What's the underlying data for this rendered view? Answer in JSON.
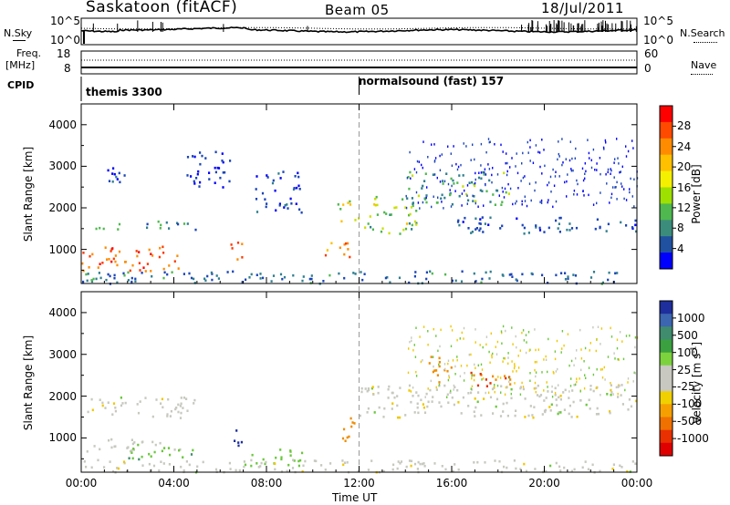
{
  "header": {
    "station": "Saskatoon (fitACF)",
    "beam": "Beam 05",
    "date": "18/Jul/2011"
  },
  "summary": {
    "nsky_label": "N.Sky",
    "nsearch_label": "N.Search",
    "freq_label_line1": "Freq.",
    "freq_label_line2": "[MHz]",
    "nave_label": "Nave",
    "cpid_label": "CPID",
    "left_ticks_top": [
      "10^5",
      "10^0"
    ],
    "right_ticks_top": [
      "10^5",
      "10^0"
    ],
    "left_ticks_freq": [
      "18",
      "8"
    ],
    "right_ticks_nave": [
      "60",
      "0"
    ],
    "cpid_segments": [
      {
        "label": "themis 3300",
        "start_hour": 0
      },
      {
        "label": "normalsound (fast) 157",
        "start_hour": 12
      }
    ]
  },
  "power_panel": {
    "ylabel": "Slant Range [km]",
    "yticks": [
      "4000",
      "3000",
      "2000",
      "1000"
    ],
    "colorbar_label": "Power [dB]",
    "colorbar_ticks": [
      "28",
      "24",
      "20",
      "16",
      "12",
      "8",
      "4"
    ],
    "colorbar_colors": [
      "#ff0000",
      "#ff4a00",
      "#ff8c00",
      "#ffc000",
      "#f5f000",
      "#9ee000",
      "#4fb84f",
      "#3c8c7c",
      "#2050a0",
      "#0000ff"
    ]
  },
  "velocity_panel": {
    "ylabel": "Slant Range [km]",
    "yticks": [
      "4000",
      "3000",
      "2000",
      "1000"
    ],
    "colorbar_label_main": "Velocity",
    "colorbar_label_units": "[m s",
    "colorbar_label_sup": "-1",
    "colorbar_label_end": "]",
    "colorbar_ticks": [
      "1000",
      "500",
      "100",
      "25",
      "-25",
      "-100",
      "-500",
      "-1000"
    ],
    "colorbar_colors": [
      "#1e2e9c",
      "#3c66b0",
      "#3f8c6e",
      "#3aa040",
      "#7cd23c",
      "#c8c8c0",
      "#c8c8c0",
      "#f0d000",
      "#f5a000",
      "#f07000",
      "#e83000",
      "#e00000"
    ]
  },
  "xaxis": {
    "label": "Time UT",
    "ticks": [
      "00:00",
      "04:00",
      "08:00",
      "12:00",
      "16:00",
      "20:00",
      "00:00"
    ]
  },
  "chart_data": [
    {
      "type": "heatmap",
      "title": "Beam 05",
      "xlabel": "Time UT",
      "ylabel": "Slant Range [km]",
      "xlim": [
        0,
        24
      ],
      "ylim": [
        180,
        4500
      ],
      "colorbar": {
        "label": "Power [dB]",
        "range": [
          0,
          30
        ]
      },
      "echo_regions": [
        {
          "t_start": 0.0,
          "t_end": 4.2,
          "range_min": 500,
          "range_max": 1100,
          "power_db": 27
        },
        {
          "t_start": 0.3,
          "t_end": 5.0,
          "range_min": 1500,
          "range_max": 1700,
          "power_db": 12
        },
        {
          "t_start": 1.0,
          "t_end": 2.5,
          "range_min": 2600,
          "range_max": 3000,
          "power_db": 6
        },
        {
          "t_start": 4.5,
          "t_end": 6.5,
          "range_min": 2500,
          "range_max": 3400,
          "power_db": 5
        },
        {
          "t_start": 6.4,
          "t_end": 7.1,
          "range_min": 700,
          "range_max": 1200,
          "power_db": 26
        },
        {
          "t_start": 7.5,
          "t_end": 9.5,
          "range_min": 1900,
          "range_max": 2900,
          "power_db": 6
        },
        {
          "t_start": 10.5,
          "t_end": 11.6,
          "range_min": 800,
          "range_max": 1300,
          "power_db": 26
        },
        {
          "t_start": 11.0,
          "t_end": 12.0,
          "range_min": 1700,
          "range_max": 2200,
          "power_db": 18
        },
        {
          "t_start": 12.2,
          "t_end": 14.5,
          "range_min": 1400,
          "range_max": 2300,
          "power_db": 16
        },
        {
          "t_start": 14.0,
          "t_end": 18.5,
          "range_min": 2100,
          "range_max": 2900,
          "power_db": 13
        },
        {
          "t_start": 16.0,
          "t_end": 24.0,
          "range_min": 1400,
          "range_max": 1800,
          "power_db": 8
        },
        {
          "t_start": 0.0,
          "t_end": 24.0,
          "range_min": 200,
          "range_max": 500,
          "power_db": 10
        }
      ]
    },
    {
      "type": "heatmap",
      "xlabel": "Time UT",
      "ylabel": "Slant Range [km]",
      "xlim": [
        0,
        24
      ],
      "ylim": [
        180,
        4500
      ],
      "colorbar": {
        "label": "Velocity [m s-1]",
        "range": [
          -1000,
          1000
        ]
      },
      "echo_regions": [
        {
          "t_start": 0.0,
          "t_end": 5.0,
          "range_min": 1500,
          "range_max": 2000,
          "velocity": 0
        },
        {
          "t_start": 0.0,
          "t_end": 4.5,
          "range_min": 700,
          "range_max": 1000,
          "velocity": 0
        },
        {
          "t_start": 2.0,
          "t_end": 5.0,
          "range_min": 500,
          "range_max": 800,
          "velocity": 80
        },
        {
          "t_start": 6.4,
          "t_end": 7.0,
          "range_min": 800,
          "range_max": 1300,
          "velocity": 600
        },
        {
          "t_start": 7.0,
          "t_end": 9.5,
          "range_min": 350,
          "range_max": 800,
          "velocity": 60
        },
        {
          "t_start": 11.0,
          "t_end": 11.8,
          "range_min": 900,
          "range_max": 1500,
          "velocity": -150
        },
        {
          "t_start": 12.0,
          "t_end": 24.0,
          "range_min": 1500,
          "range_max": 2300,
          "velocity": 0
        },
        {
          "t_start": 15.0,
          "t_end": 16.0,
          "range_min": 2300,
          "range_max": 3000,
          "velocity": -300
        },
        {
          "t_start": 16.5,
          "t_end": 18.5,
          "range_min": 2200,
          "range_max": 2600,
          "velocity": -500
        },
        {
          "t_start": 0.0,
          "t_end": 24.0,
          "range_min": 200,
          "range_max": 500,
          "velocity": 0
        }
      ]
    }
  ]
}
